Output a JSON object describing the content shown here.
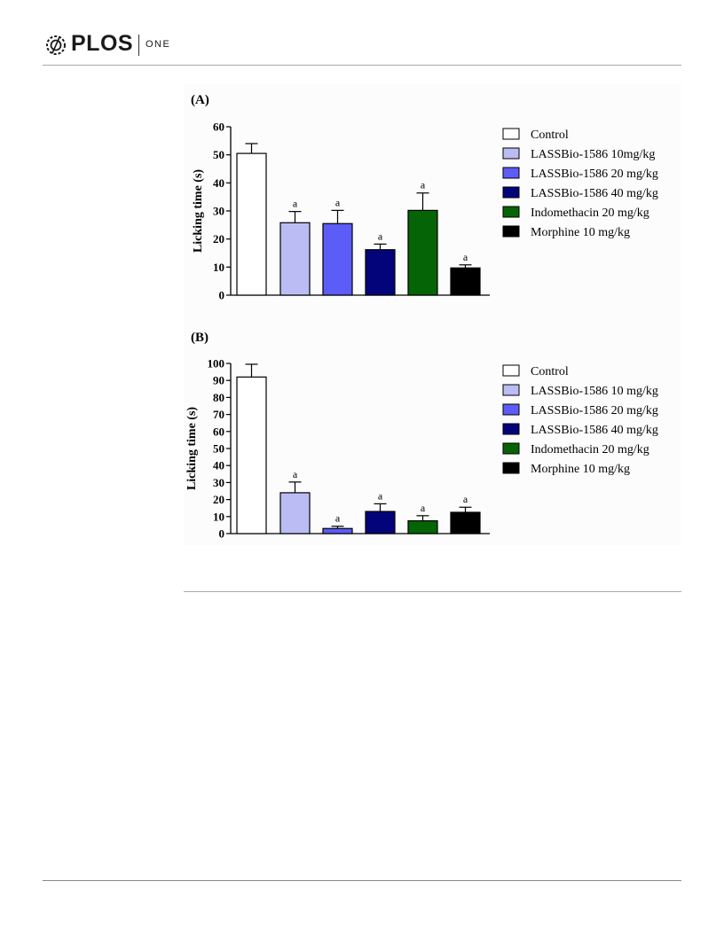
{
  "header": {
    "logo_text": "PLOS",
    "logo_sub": "ONE"
  },
  "chart_data": [
    {
      "type": "bar",
      "panel_label": "(A)",
      "ylabel": "Licking time (s)",
      "ylim": [
        0,
        60
      ],
      "yticks": [
        0,
        10,
        20,
        30,
        40,
        50,
        60
      ],
      "categories": [
        "Control",
        "LASSBio-1586 10mg/kg",
        "LASSBio-1586 20 mg/kg",
        "LASSBio-1586 40 mg/kg",
        "Indomethacin 20 mg/kg",
        "Morphine 10 mg/kg"
      ],
      "values": [
        50.5,
        25.8,
        25.5,
        16.2,
        30.2,
        9.7
      ],
      "errors": [
        3.5,
        4.0,
        4.7,
        2.0,
        6.2,
        1.1
      ],
      "annotations": [
        "",
        "a",
        "a",
        "a",
        "a",
        "a"
      ],
      "colors": [
        "#ffffff",
        "#bcbcf5",
        "#5c5cf6",
        "#04047a",
        "#056405",
        "#000000"
      ],
      "legend": [
        "Control",
        "LASSBio-1586 10mg/kg",
        "LASSBio-1586 20 mg/kg",
        "LASSBio-1586 40 mg/kg",
        "Indomethacin 20 mg/kg",
        "Morphine 10 mg/kg"
      ],
      "legend_position": "right",
      "grid": false
    },
    {
      "type": "bar",
      "panel_label": "(B)",
      "ylabel": "Licking time (s)",
      "ylim": [
        0,
        100
      ],
      "yticks": [
        0,
        10,
        20,
        30,
        40,
        50,
        60,
        70,
        80,
        90,
        100
      ],
      "categories": [
        "Control",
        "LASSBio-1586 10 mg/kg",
        "LASSBio-1586 20 mg/kg",
        "LASSBio-1586 40 mg/kg",
        "Indomethacin 20 mg/kg",
        "Morphine 10 mg/kg"
      ],
      "values": [
        92,
        24,
        3,
        13,
        7.5,
        12.5
      ],
      "errors": [
        7.5,
        6.3,
        1.3,
        4.5,
        3.0,
        3.0
      ],
      "annotations": [
        "",
        "a",
        "a",
        "a",
        "a",
        "a"
      ],
      "colors": [
        "#ffffff",
        "#bcbcf5",
        "#5c5cf6",
        "#04047a",
        "#056405",
        "#000000"
      ],
      "legend": [
        "Control",
        "LASSBio-1586 10 mg/kg",
        "LASSBio-1586 20 mg/kg",
        "LASSBio-1586 40 mg/kg",
        "Indomethacin 20 mg/kg",
        "Morphine 10 mg/kg"
      ],
      "legend_position": "right",
      "grid": false
    }
  ]
}
